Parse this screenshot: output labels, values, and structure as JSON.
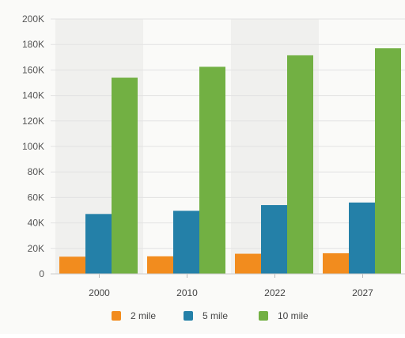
{
  "chart_data": {
    "type": "bar",
    "title": "",
    "xlabel": "",
    "ylabel": "",
    "categories": [
      "2000",
      "2010",
      "2022",
      "2027"
    ],
    "series": [
      {
        "name": "2 mile",
        "color": "#f28c1e",
        "values": [
          13500,
          13800,
          15800,
          16200
        ]
      },
      {
        "name": "5 mile",
        "color": "#2480a8",
        "values": [
          47000,
          49500,
          54000,
          56000
        ]
      },
      {
        "name": "10 mile",
        "color": "#72b043",
        "values": [
          154000,
          162500,
          171500,
          177000
        ]
      }
    ],
    "ylim": [
      0,
      200000
    ],
    "yticks": [
      0,
      20000,
      40000,
      60000,
      80000,
      100000,
      120000,
      140000,
      160000,
      180000,
      200000
    ],
    "ytick_labels": [
      "0",
      "20K",
      "40K",
      "60K",
      "80K",
      "100K",
      "120K",
      "140K",
      "160K",
      "180K",
      "200K"
    ],
    "grid": true,
    "legend_position": "bottom"
  }
}
